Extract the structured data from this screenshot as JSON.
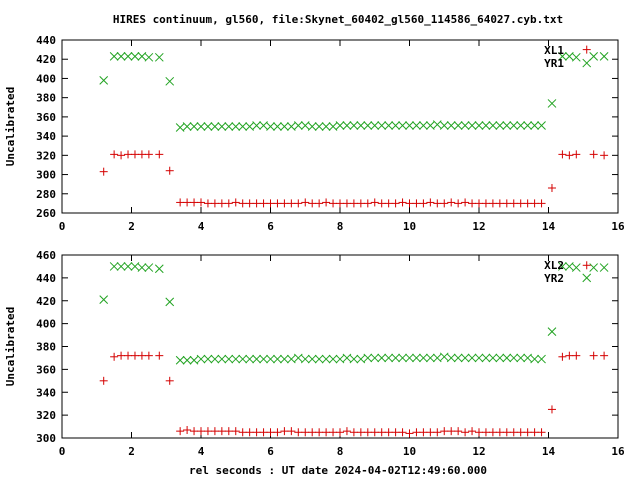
{
  "title": "HIRES continuum, gl560, file:Skynet_60402_gl560_114586_64027.cyb.txt",
  "xlabel": "rel seconds : UT date 2024-04-02T12:49:60.000",
  "colors": {
    "plus_series": "#d40000",
    "x_series": "#22a322",
    "axis": "#000000"
  },
  "chart_data": [
    {
      "type": "scatter",
      "ylabel": "Uncalibrated",
      "xlim": [
        0,
        16
      ],
      "ylim": [
        260,
        440
      ],
      "xticks": [
        "0",
        "2",
        "4",
        "6",
        "8",
        "10",
        "12",
        "14",
        "16"
      ],
      "yticks": [
        "260",
        "280",
        "300",
        "320",
        "340",
        "360",
        "380",
        "400",
        "420",
        "440"
      ],
      "grid": false,
      "legend_position": "top-right",
      "series": [
        {
          "name": "XL1",
          "marker": "x",
          "color": "#22a322",
          "x": [
            1.2,
            1.5,
            1.7,
            1.9,
            2.1,
            2.3,
            2.5,
            2.8,
            3.1,
            3.4,
            3.6,
            3.8,
            4.0,
            4.2,
            4.4,
            4.6,
            4.8,
            5.0,
            5.2,
            5.4,
            5.6,
            5.8,
            6.0,
            6.2,
            6.4,
            6.6,
            6.8,
            7.0,
            7.2,
            7.4,
            7.6,
            7.8,
            8.0,
            8.2,
            8.4,
            8.6,
            8.8,
            9.0,
            9.2,
            9.4,
            9.6,
            9.8,
            10.0,
            10.2,
            10.4,
            10.6,
            10.8,
            11.0,
            11.2,
            11.4,
            11.6,
            11.8,
            12.0,
            12.2,
            12.4,
            12.6,
            12.8,
            13.0,
            13.2,
            13.4,
            13.6,
            13.8,
            14.1,
            14.4,
            14.6,
            14.8,
            15.1,
            15.3,
            15.6
          ],
          "y": [
            398,
            423,
            423,
            423,
            423,
            423,
            422,
            422,
            397,
            349,
            350,
            350,
            350,
            350,
            350,
            350,
            350,
            350,
            350,
            350,
            351,
            351,
            350,
            350,
            350,
            350,
            351,
            351,
            350,
            350,
            350,
            350,
            351,
            351,
            351,
            351,
            351,
            351,
            351,
            351,
            351,
            351,
            351,
            351,
            351,
            351,
            352,
            351,
            351,
            351,
            351,
            351,
            351,
            351,
            351,
            351,
            351,
            351,
            351,
            351,
            351,
            351,
            374,
            423,
            423,
            422,
            416,
            423,
            423
          ]
        },
        {
          "name": "YR1",
          "marker": "+",
          "color": "#d40000",
          "x": [
            1.2,
            1.5,
            1.7,
            1.9,
            2.1,
            2.3,
            2.5,
            2.8,
            3.1,
            3.4,
            3.6,
            3.8,
            4.0,
            4.2,
            4.4,
            4.6,
            4.8,
            5.0,
            5.2,
            5.4,
            5.6,
            5.8,
            6.0,
            6.2,
            6.4,
            6.6,
            6.8,
            7.0,
            7.2,
            7.4,
            7.6,
            7.8,
            8.0,
            8.2,
            8.4,
            8.6,
            8.8,
            9.0,
            9.2,
            9.4,
            9.6,
            9.8,
            10.0,
            10.2,
            10.4,
            10.6,
            10.8,
            11.0,
            11.2,
            11.4,
            11.6,
            11.8,
            12.0,
            12.2,
            12.4,
            12.6,
            12.8,
            13.0,
            13.2,
            13.4,
            13.6,
            13.8,
            14.1,
            14.4,
            14.6,
            14.8,
            15.1,
            15.3,
            15.6
          ],
          "y": [
            303,
            321,
            320,
            321,
            321,
            321,
            321,
            321,
            304,
            271,
            271,
            271,
            271,
            270,
            270,
            270,
            270,
            271,
            270,
            270,
            270,
            270,
            270,
            270,
            270,
            270,
            270,
            271,
            270,
            270,
            271,
            270,
            270,
            270,
            270,
            270,
            270,
            271,
            270,
            270,
            270,
            271,
            270,
            270,
            270,
            271,
            270,
            270,
            271,
            270,
            271,
            270,
            270,
            270,
            270,
            270,
            270,
            270,
            270,
            270,
            270,
            270,
            286,
            321,
            320,
            321,
            430,
            321,
            320
          ]
        }
      ]
    },
    {
      "type": "scatter",
      "ylabel": "Uncalibrated",
      "xlim": [
        0,
        16
      ],
      "ylim": [
        300,
        460
      ],
      "xticks": [
        "0",
        "2",
        "4",
        "6",
        "8",
        "10",
        "12",
        "14",
        "16"
      ],
      "yticks": [
        "300",
        "320",
        "340",
        "360",
        "380",
        "400",
        "420",
        "440",
        "460"
      ],
      "grid": false,
      "legend_position": "top-right",
      "series": [
        {
          "name": "XL2",
          "marker": "x",
          "color": "#22a322",
          "x": [
            1.2,
            1.5,
            1.7,
            1.9,
            2.1,
            2.3,
            2.5,
            2.8,
            3.1,
            3.4,
            3.6,
            3.8,
            4.0,
            4.2,
            4.4,
            4.6,
            4.8,
            5.0,
            5.2,
            5.4,
            5.6,
            5.8,
            6.0,
            6.2,
            6.4,
            6.6,
            6.8,
            7.0,
            7.2,
            7.4,
            7.6,
            7.8,
            8.0,
            8.2,
            8.4,
            8.6,
            8.8,
            9.0,
            9.2,
            9.4,
            9.6,
            9.8,
            10.0,
            10.2,
            10.4,
            10.6,
            10.8,
            11.0,
            11.2,
            11.4,
            11.6,
            11.8,
            12.0,
            12.2,
            12.4,
            12.6,
            12.8,
            13.0,
            13.2,
            13.4,
            13.6,
            13.8,
            14.1,
            14.4,
            14.6,
            14.8,
            15.1,
            15.3,
            15.6
          ],
          "y": [
            421,
            450,
            450,
            450,
            450,
            449,
            449,
            448,
            419,
            368,
            368,
            368,
            369,
            369,
            369,
            369,
            369,
            369,
            369,
            369,
            369,
            369,
            369,
            369,
            369,
            369,
            370,
            369,
            369,
            369,
            369,
            369,
            369,
            370,
            369,
            369,
            370,
            370,
            370,
            370,
            370,
            370,
            370,
            370,
            370,
            370,
            370,
            371,
            370,
            370,
            370,
            370,
            370,
            370,
            370,
            370,
            370,
            370,
            370,
            370,
            369,
            369,
            393,
            450,
            450,
            449,
            440,
            449,
            449
          ]
        },
        {
          "name": "YR2",
          "marker": "+",
          "color": "#d40000",
          "x": [
            1.2,
            1.5,
            1.7,
            1.9,
            2.1,
            2.3,
            2.5,
            2.8,
            3.1,
            3.4,
            3.6,
            3.8,
            4.0,
            4.2,
            4.4,
            4.6,
            4.8,
            5.0,
            5.2,
            5.4,
            5.6,
            5.8,
            6.0,
            6.2,
            6.4,
            6.6,
            6.8,
            7.0,
            7.2,
            7.4,
            7.6,
            7.8,
            8.0,
            8.2,
            8.4,
            8.6,
            8.8,
            9.0,
            9.2,
            9.4,
            9.6,
            9.8,
            10.0,
            10.2,
            10.4,
            10.6,
            10.8,
            11.0,
            11.2,
            11.4,
            11.6,
            11.8,
            12.0,
            12.2,
            12.4,
            12.6,
            12.8,
            13.0,
            13.2,
            13.4,
            13.6,
            13.8,
            14.1,
            14.4,
            14.6,
            14.8,
            15.1,
            15.3,
            15.6
          ],
          "y": [
            350,
            371,
            372,
            372,
            372,
            372,
            372,
            372,
            350,
            306,
            307,
            306,
            306,
            306,
            306,
            306,
            306,
            306,
            305,
            305,
            305,
            305,
            305,
            305,
            306,
            306,
            305,
            305,
            305,
            305,
            305,
            305,
            305,
            306,
            305,
            305,
            305,
            305,
            305,
            305,
            305,
            305,
            304,
            305,
            305,
            305,
            305,
            306,
            306,
            306,
            305,
            306,
            305,
            305,
            305,
            305,
            305,
            305,
            305,
            305,
            305,
            305,
            325,
            371,
            372,
            372,
            451,
            372,
            372
          ]
        }
      ]
    }
  ]
}
